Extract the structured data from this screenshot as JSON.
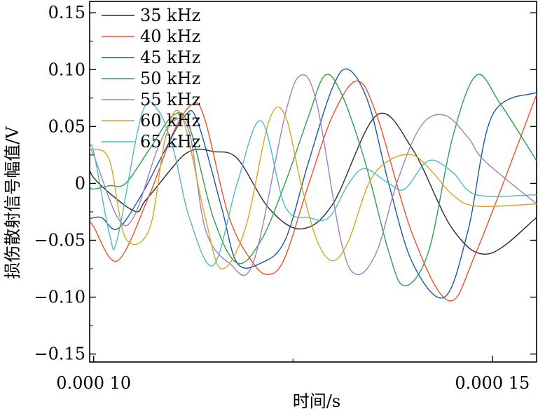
{
  "chart_data": {
    "type": "line",
    "title": "",
    "xlabel": "时间/s",
    "ylabel": "损伤散射信号幅值/V",
    "xlim": [
      9.95e-05,
      0.00015555
    ],
    "ylim": [
      -0.157,
      0.16
    ],
    "x_ticks": [
      {
        "value": 0.0001,
        "label": "0.000 10"
      },
      {
        "value": 0.00015,
        "label": "0.000 15"
      }
    ],
    "x_minor_ticks": [
      0.000125
    ],
    "y_ticks": [
      {
        "value": 0.15,
        "label": "0.15"
      },
      {
        "value": 0.1,
        "label": "0.10"
      },
      {
        "value": 0.05,
        "label": "0.05"
      },
      {
        "value": 0,
        "label": "0"
      },
      {
        "value": -0.05,
        "label": "−0.05"
      },
      {
        "value": -0.1,
        "label": "−0.10"
      },
      {
        "value": -0.15,
        "label": "−0.15"
      }
    ],
    "grid": false,
    "legend_position": "top-left",
    "series": [
      {
        "name": "35 kHz",
        "color": "#2b2b2b",
        "x": [
          9.95e-05,
          0.0001,
          0.000105,
          0.0001065,
          0.00011,
          0.0001115,
          0.000113,
          0.000115,
          0.000118,
          0.000122,
          0.000126,
          0.00013,
          0.0001355,
          0.00014,
          0.000145,
          0.0001495,
          0.00015555
        ],
        "y": [
          0.023,
          0.005,
          -0.024,
          -0.015,
          0.015,
          0.026,
          0.03,
          0.028,
          0.022,
          -0.022,
          -0.04,
          -0.018,
          0.06,
          0.03,
          -0.04,
          -0.062,
          -0.03
        ]
      },
      {
        "name": "40 kHz",
        "color": "#e8502e",
        "x": [
          9.95e-05,
          0.0001,
          0.000103,
          0.000107,
          0.00011,
          0.0001125,
          0.000114,
          0.000117,
          0.00012,
          0.000122,
          0.000124,
          0.000127,
          0.00013,
          0.000133,
          0.0001355,
          0.00014,
          0.0001445,
          0.000148,
          0.00015555
        ],
        "y": [
          -0.033,
          -0.038,
          -0.068,
          -0.01,
          0.045,
          0.07,
          0.055,
          -0.03,
          -0.07,
          -0.08,
          -0.065,
          0.0,
          0.06,
          0.09,
          0.06,
          -0.045,
          -0.103,
          -0.06,
          0.078
        ]
      },
      {
        "name": "45 kHz",
        "color": "#1a56a6",
        "x": [
          9.95e-05,
          0.000101,
          0.000103,
          0.000106,
          0.000109,
          0.0001115,
          0.000113,
          0.000116,
          0.000118,
          0.000121,
          0.000124,
          0.000127,
          0.00013,
          0.000132,
          0.0001345,
          0.000137,
          0.00014,
          0.000144,
          0.000147,
          0.00015,
          0.00015555
        ],
        "y": [
          -0.031,
          -0.03,
          -0.04,
          -0.01,
          0.03,
          0.06,
          0.055,
          -0.02,
          -0.07,
          -0.07,
          -0.05,
          0.02,
          0.085,
          0.1,
          0.07,
          0.0,
          -0.07,
          -0.1,
          -0.04,
          0.06,
          0.08
        ]
      },
      {
        "name": "50 kHz",
        "color": "#2e9e4f",
        "x": [
          9.95e-05,
          0.0001,
          0.000102,
          0.000104,
          0.000107,
          0.00011,
          0.000112,
          0.000115,
          0.000118,
          0.000121,
          0.000124,
          0.000127,
          0.000129,
          0.000131,
          0.000134,
          0.000137,
          0.000139,
          0.000142,
          0.000145,
          0.000148,
          0.000151,
          0.00015555
        ],
        "y": [
          -0.003,
          -0.005,
          -0.002,
          0.0,
          0.03,
          0.06,
          0.05,
          -0.03,
          -0.07,
          -0.05,
          0.0,
          0.06,
          0.095,
          0.08,
          0.02,
          -0.06,
          -0.09,
          -0.06,
          0.04,
          0.095,
          0.07,
          0.02
        ]
      },
      {
        "name": "55 kHz",
        "color": "#9b7fc4",
        "x": [
          9.95e-05,
          0.0001,
          0.000103,
          0.000105,
          0.000108,
          0.00011,
          0.000112,
          0.000114,
          0.000117,
          0.00012,
          0.000124,
          0.000126,
          0.000128,
          0.000131,
          0.000133,
          0.0001355,
          0.000138,
          0.000141,
          0.000144,
          0.000147,
          0.000149,
          0.00015555
        ],
        "y": [
          0.028,
          0.025,
          -0.03,
          -0.03,
          0.03,
          0.055,
          0.045,
          -0.04,
          -0.07,
          -0.07,
          0.06,
          0.095,
          0.07,
          -0.05,
          -0.08,
          -0.06,
          0.0,
          0.05,
          0.06,
          0.04,
          0.02,
          -0.018
        ]
      },
      {
        "name": "60 kHz",
        "color": "#d9a520",
        "x": [
          9.95e-05,
          0.0001,
          0.000102,
          0.000104,
          0.000107,
          0.000109,
          0.000111,
          0.000114,
          0.000116,
          0.000119,
          0.000122,
          0.000124,
          0.000126,
          0.000128,
          0.00013,
          0.000132,
          0.0001345,
          0.000137,
          0.00014,
          0.0001425,
          0.000145,
          0.000148,
          0.00015555
        ],
        "y": [
          0.028,
          0.03,
          0.02,
          -0.048,
          -0.04,
          0.04,
          0.06,
          -0.03,
          -0.075,
          -0.04,
          0.055,
          0.06,
          0.0,
          -0.05,
          -0.068,
          -0.05,
          0.0,
          0.02,
          0.025,
          0.01,
          -0.01,
          -0.02,
          -0.018
        ]
      },
      {
        "name": "65 kHz",
        "color": "#4fb9c0",
        "x": [
          9.95e-05,
          0.0001,
          0.000102,
          0.000103,
          0.000106,
          0.000108,
          0.00011,
          0.000112,
          0.000115,
          0.000118,
          0.000121,
          0.000124,
          0.000127,
          0.0001295,
          0.000132,
          0.000134,
          0.000137,
          0.000139,
          0.000142,
          0.000145,
          0.000148,
          0.00015555
        ],
        "y": [
          0.03,
          0.028,
          -0.045,
          -0.048,
          0.06,
          0.065,
          0.03,
          -0.03,
          -0.072,
          0.0,
          0.055,
          -0.02,
          -0.03,
          -0.03,
          0.0,
          0.013,
          0.0,
          -0.005,
          0.02,
          0.01,
          -0.01,
          -0.01
        ]
      }
    ]
  }
}
